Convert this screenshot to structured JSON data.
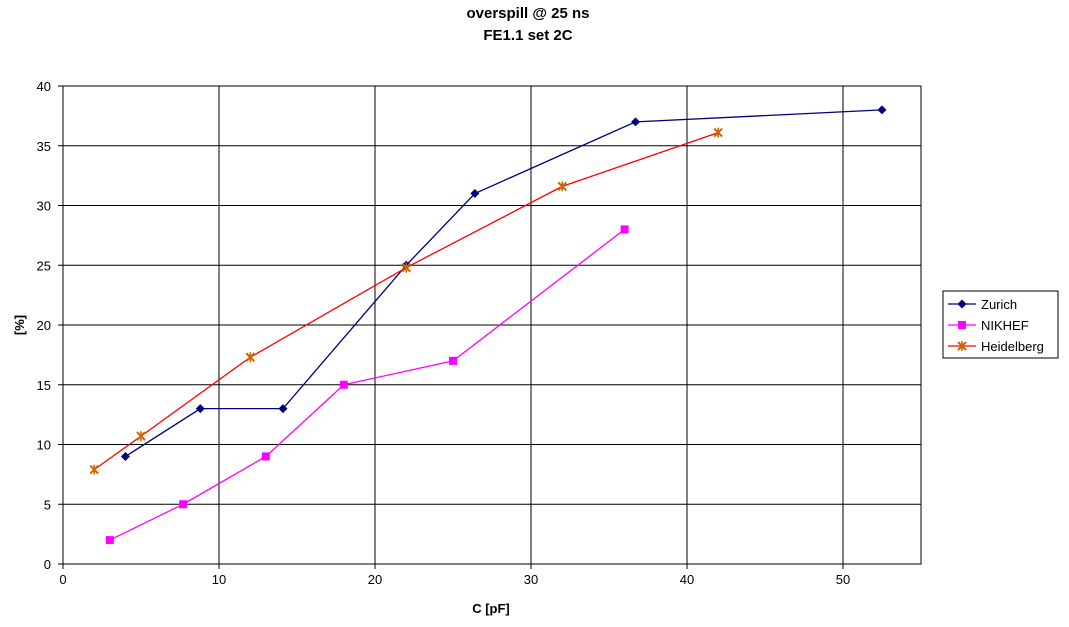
{
  "chart_data": {
    "type": "scatter",
    "title": "overspill @ 25 ns",
    "subtitle": "FE1.1  set 2C",
    "xlabel": "C [pF]",
    "ylabel": "[%]",
    "xlim": [
      0,
      55
    ],
    "ylim": [
      0,
      40
    ],
    "xticks": [
      0,
      10,
      20,
      30,
      40,
      50
    ],
    "yticks": [
      0,
      5,
      10,
      15,
      20,
      25,
      30,
      35,
      40
    ],
    "grid": true,
    "legend_position": "right",
    "series": [
      {
        "name": "Zurich",
        "color": "#000080",
        "marker": "diamond",
        "x": [
          4,
          8.8,
          14.1,
          22,
          26.4,
          36.7,
          52.5
        ],
        "y": [
          9,
          13,
          13,
          25,
          31,
          37,
          38
        ]
      },
      {
        "name": "NIKHEF",
        "color": "#ff00ff",
        "marker": "square",
        "x": [
          3,
          7.7,
          13,
          18,
          25,
          36
        ],
        "y": [
          2,
          5,
          9,
          15,
          17,
          28
        ]
      },
      {
        "name": "Heidelberg",
        "color": "#ff0000",
        "markerColor": "#cc6600",
        "marker": "star",
        "x": [
          2,
          5,
          12,
          22,
          32,
          42
        ],
        "y": [
          7.9,
          10.7,
          17.3,
          24.8,
          31.6,
          36.1
        ]
      }
    ]
  }
}
